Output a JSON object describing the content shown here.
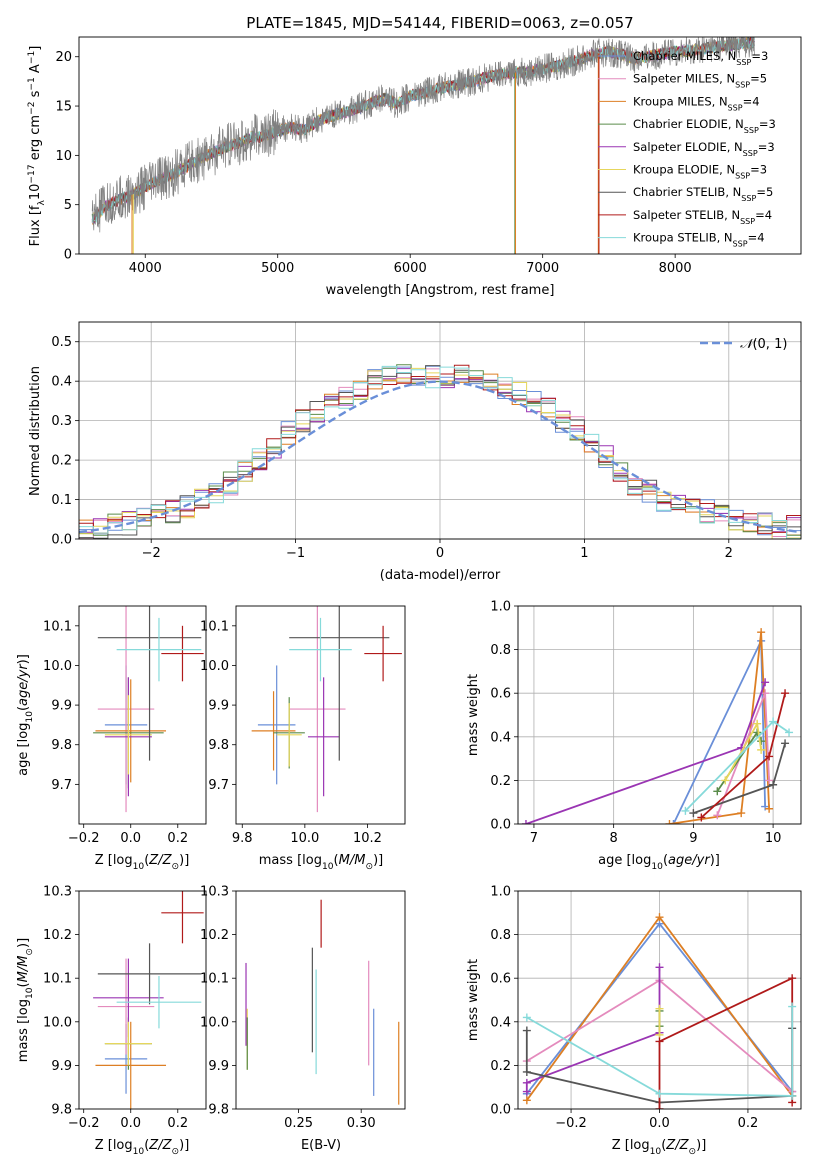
{
  "chart_data": [
    {
      "id": "spectrum",
      "type": "line",
      "title": "PLATE=1845, MJD=54144, FIBERID=0063, z=0.057",
      "xlabel": "wavelength [Angstrom, rest frame]",
      "ylabel": "Flux [f_λ 10^-17 erg cm^-2 s^-1 A^-1]",
      "xlim": [
        3500,
        8950
      ],
      "ylim": [
        0,
        22
      ],
      "xticks": [
        4000,
        5000,
        6000,
        7000,
        8000
      ],
      "yticks": [
        0,
        5,
        10,
        15,
        20
      ],
      "data_color": "#808080",
      "data_x": [
        3600,
        3700,
        3800,
        3900,
        4000,
        4100,
        4200,
        4300,
        4400,
        4500,
        4600,
        4700,
        4800,
        4900,
        5000,
        5100,
        5200,
        5300,
        5400,
        5500,
        5600,
        5700,
        5800,
        5900,
        6000,
        6100,
        6200,
        6300,
        6400,
        6500,
        6600,
        6700,
        6800,
        6900,
        7000,
        7100,
        7200,
        7300,
        7400,
        7500,
        7600,
        7700,
        7800,
        7900,
        8000,
        8100,
        8200,
        8300,
        8400,
        8500,
        8600,
        8700
      ],
      "data_y": [
        3.5,
        4.8,
        5.5,
        6.0,
        6.8,
        7.5,
        8.0,
        8.8,
        9.5,
        10.2,
        10.8,
        11.2,
        11.8,
        12.0,
        12.5,
        12.8,
        12.6,
        13.5,
        14.0,
        14.3,
        14.8,
        15.3,
        15.8,
        15.2,
        16.0,
        16.3,
        16.8,
        17.0,
        17.3,
        17.6,
        18.0,
        18.2,
        18.4,
        18.5,
        18.8,
        19.0,
        19.4,
        19.8,
        20.3,
        20.5,
        20.2,
        19.8,
        20.0,
        20.3,
        20.5,
        20.6,
        20.8,
        21.0,
        21.2,
        21.3,
        21.5,
        21.8
      ],
      "legend_placement": "right",
      "legend": [
        {
          "label": "Chabrier MILES, N_SSP=3",
          "color": "#6a8fd8"
        },
        {
          "label": "Salpeter MILES, N_SSP=5",
          "color": "#e48bbd"
        },
        {
          "label": "Kroupa MILES, N_SSP=4",
          "color": "#dd7f24"
        },
        {
          "label": "Chabrier ELODIE, N_SSP=3",
          "color": "#5a8c4a"
        },
        {
          "label": "Salpeter ELODIE, N_SSP=3",
          "color": "#9a35b3"
        },
        {
          "label": "Kroupa ELODIE, N_SSP=3",
          "color": "#e6d65c"
        },
        {
          "label": "Chabrier STELIB, N_SSP=5",
          "color": "#555555"
        },
        {
          "label": "Salpeter STELIB, N_SSP=4",
          "color": "#b01a1a"
        },
        {
          "label": "Kroupa STELIB, N_SSP=4",
          "color": "#86dada"
        }
      ]
    },
    {
      "id": "residuals",
      "type": "histogram",
      "xlabel": "(data-model)/error",
      "ylabel": "Normed distribution",
      "xlim": [
        -2.5,
        2.5
      ],
      "ylim": [
        0,
        0.55
      ],
      "xticks": [
        -2,
        -1,
        0,
        1,
        2
      ],
      "yticks": [
        0.0,
        0.1,
        0.2,
        0.3,
        0.4,
        0.5
      ],
      "grid": true,
      "bin_edges": [
        -2.5,
        -2.4,
        -2.3,
        -2.2,
        -2.1,
        -2.0,
        -1.9,
        -1.8,
        -1.7,
        -1.6,
        -1.5,
        -1.4,
        -1.3,
        -1.2,
        -1.1,
        -1.0,
        -0.9,
        -0.8,
        -0.7,
        -0.6,
        -0.5,
        -0.4,
        -0.3,
        -0.2,
        -0.1,
        0.0,
        0.1,
        0.2,
        0.3,
        0.4,
        0.5,
        0.6,
        0.7,
        0.8,
        0.9,
        1.0,
        1.1,
        1.2,
        1.3,
        1.4,
        1.5,
        1.6,
        1.7,
        1.8,
        1.9,
        2.0,
        2.1,
        2.2,
        2.3,
        2.4,
        2.5
      ],
      "mean_hist": [
        0.03,
        0.03,
        0.04,
        0.04,
        0.05,
        0.06,
        0.07,
        0.08,
        0.1,
        0.12,
        0.14,
        0.17,
        0.2,
        0.23,
        0.27,
        0.3,
        0.32,
        0.34,
        0.36,
        0.38,
        0.4,
        0.41,
        0.42,
        0.42,
        0.41,
        0.41,
        0.42,
        0.4,
        0.39,
        0.38,
        0.37,
        0.35,
        0.33,
        0.3,
        0.28,
        0.25,
        0.21,
        0.17,
        0.14,
        0.12,
        0.1,
        0.09,
        0.08,
        0.07,
        0.06,
        0.05,
        0.04,
        0.04,
        0.03,
        0.03
      ],
      "gaussian_label": "N(0,1)",
      "gaussian_color": "#6a8fd8",
      "legend_placement": "top-right"
    },
    {
      "id": "age-vs-Z",
      "type": "scatter",
      "xlabel": "Z [log10(Z/Z_sun)]",
      "ylabel": "age [log10(age/yr)]",
      "xlim": [
        -0.22,
        0.32
      ],
      "ylim": [
        9.6,
        10.15
      ],
      "xticks": [
        -0.2,
        0.0,
        0.2
      ],
      "yticks": [
        9.7,
        9.8,
        9.9,
        10.0,
        10.1
      ],
      "points": [
        {
          "color": "#6a8fd8",
          "x": -0.02,
          "y": 9.85,
          "xerr": 0.09,
          "yerr": 0.15
        },
        {
          "color": "#e48bbd",
          "x": -0.02,
          "y": 9.89,
          "xerr": 0.12,
          "yerr": 0.26
        },
        {
          "color": "#dd7f24",
          "x": 0.0,
          "y": 9.835,
          "xerr": 0.15,
          "yerr": 0.13
        },
        {
          "color": "#5a8c4a",
          "x": -0.01,
          "y": 9.83,
          "xerr": 0.15,
          "yerr": 0.14
        },
        {
          "color": "#9a35b3",
          "x": -0.01,
          "y": 9.82,
          "xerr": 0.1,
          "yerr": 0.15
        },
        {
          "color": "#e6d65c",
          "x": -0.01,
          "y": 9.825,
          "xerr": 0.1,
          "yerr": 0.1
        },
        {
          "color": "#555555",
          "x": 0.08,
          "y": 10.07,
          "xerr": 0.22,
          "yerr": 0.31
        },
        {
          "color": "#b01a1a",
          "x": 0.22,
          "y": 10.03,
          "xerr": 0.09,
          "yerr": 0.07
        },
        {
          "color": "#86dada",
          "x": 0.12,
          "y": 10.04,
          "xerr": 0.18,
          "yerr": 0.08
        }
      ]
    },
    {
      "id": "age-vs-mass",
      "type": "scatter",
      "xlabel": "mass [log10(M/M_sun)]",
      "ylabel": "",
      "xlim": [
        9.78,
        10.32
      ],
      "ylim": [
        9.6,
        10.15
      ],
      "xticks": [
        9.8,
        10.0,
        10.2
      ],
      "yticks": [
        9.7,
        9.8,
        9.9,
        10.0,
        10.1
      ],
      "points": [
        {
          "color": "#6a8fd8",
          "x": 9.91,
          "y": 9.85,
          "xerr": 0.06,
          "yerr": 0.15
        },
        {
          "color": "#e48bbd",
          "x": 10.04,
          "y": 9.89,
          "xerr": 0.09,
          "yerr": 0.26
        },
        {
          "color": "#dd7f24",
          "x": 9.9,
          "y": 9.835,
          "xerr": 0.07,
          "yerr": 0.1
        },
        {
          "color": "#5a8c4a",
          "x": 9.95,
          "y": 9.83,
          "xerr": 0.05,
          "yerr": 0.09
        },
        {
          "color": "#9a35b3",
          "x": 10.06,
          "y": 9.82,
          "xerr": 0.05,
          "yerr": 0.15
        },
        {
          "color": "#e6d65c",
          "x": 9.95,
          "y": 9.825,
          "xerr": 0.04,
          "yerr": 0.08
        },
        {
          "color": "#555555",
          "x": 10.11,
          "y": 10.07,
          "xerr": 0.16,
          "yerr": 0.31
        },
        {
          "color": "#b01a1a",
          "x": 10.25,
          "y": 10.03,
          "xerr": 0.06,
          "yerr": 0.07
        },
        {
          "color": "#86dada",
          "x": 10.05,
          "y": 10.04,
          "xerr": 0.1,
          "yerr": 0.08
        }
      ]
    },
    {
      "id": "weight-vs-age",
      "type": "line",
      "xlabel": "age [log10(age/yr)]",
      "ylabel": "mass weight",
      "xlim": [
        6.8,
        10.35
      ],
      "ylim": [
        0,
        1.0
      ],
      "xticks": [
        7,
        8,
        9,
        10
      ],
      "yticks": [
        0.0,
        0.2,
        0.4,
        0.6,
        0.8,
        1.0
      ],
      "grid": true,
      "series": [
        {
          "color": "#6a8fd8",
          "x": [
            8.75,
            9.85,
            9.9
          ],
          "y": [
            0.0,
            0.84,
            0.08
          ]
        },
        {
          "color": "#dd7f24",
          "x": [
            8.7,
            9.6,
            9.85,
            9.95
          ],
          "y": [
            0.0,
            0.05,
            0.88,
            0.07
          ]
        },
        {
          "color": "#e48bbd",
          "x": [
            9.3,
            9.9,
            9.95
          ],
          "y": [
            0.04,
            0.6,
            0.2
          ]
        },
        {
          "color": "#9a35b3",
          "x": [
            6.9,
            9.6,
            9.9
          ],
          "y": [
            0.0,
            0.35,
            0.65
          ]
        },
        {
          "color": "#5a8c4a",
          "x": [
            9.3,
            9.8,
            9.85
          ],
          "y": [
            0.15,
            0.42,
            0.38
          ]
        },
        {
          "color": "#e6d65c",
          "x": [
            9.4,
            9.8,
            9.85
          ],
          "y": [
            0.2,
            0.46,
            0.34
          ]
        },
        {
          "color": "#555555",
          "x": [
            9.0,
            10.0,
            10.15
          ],
          "y": [
            0.05,
            0.18,
            0.37
          ]
        },
        {
          "color": "#b01a1a",
          "x": [
            9.1,
            9.95,
            10.15
          ],
          "y": [
            0.03,
            0.31,
            0.6
          ]
        },
        {
          "color": "#86dada",
          "x": [
            8.9,
            10.0,
            10.2
          ],
          "y": [
            0.06,
            0.47,
            0.42
          ]
        }
      ]
    },
    {
      "id": "mass-vs-Z",
      "type": "scatter",
      "xlabel": "Z [log10(Z/Z_sun)]",
      "ylabel": "mass [log10(M/M_sun)]",
      "xlim": [
        -0.22,
        0.32
      ],
      "ylim": [
        9.8,
        10.3
      ],
      "xticks": [
        -0.2,
        0.0,
        0.2
      ],
      "yticks": [
        9.8,
        9.9,
        10.0,
        10.1,
        10.2,
        10.3
      ],
      "points": [
        {
          "color": "#6a8fd8",
          "x": -0.02,
          "y": 9.915,
          "xerr": 0.09,
          "yerr": 0.08
        },
        {
          "color": "#e48bbd",
          "x": -0.02,
          "y": 10.035,
          "xerr": 0.12,
          "yerr": 0.11
        },
        {
          "color": "#dd7f24",
          "x": 0.0,
          "y": 9.9,
          "xerr": 0.15,
          "yerr": 0.1
        },
        {
          "color": "#5a8c4a",
          "x": -0.01,
          "y": 9.95,
          "xerr": 0.1,
          "yerr": 0.06
        },
        {
          "color": "#9a35b3",
          "x": -0.01,
          "y": 10.055,
          "xerr": 0.15,
          "yerr": 0.09
        },
        {
          "color": "#e6d65c",
          "x": -0.01,
          "y": 9.95,
          "xerr": 0.1,
          "yerr": 0.05
        },
        {
          "color": "#555555",
          "x": 0.08,
          "y": 10.11,
          "xerr": 0.22,
          "yerr": 0.07
        },
        {
          "color": "#b01a1a",
          "x": 0.22,
          "y": 10.25,
          "xerr": 0.09,
          "yerr": 0.07
        },
        {
          "color": "#86dada",
          "x": 0.12,
          "y": 10.045,
          "xerr": 0.18,
          "yerr": 0.06
        }
      ]
    },
    {
      "id": "mass-vs-ebv",
      "type": "errorbar",
      "xlabel": "E(B-V)",
      "ylabel": "",
      "xlim": [
        0.2,
        0.335
      ],
      "ylim": [
        9.8,
        10.3
      ],
      "xticks": [
        0.25,
        0.3
      ],
      "yticks": [
        9.8,
        9.9,
        10.0,
        10.1,
        10.2,
        10.3
      ],
      "points": [
        {
          "color": "#9a35b3",
          "x": 0.208,
          "y": 10.04,
          "yerr": 0.095
        },
        {
          "color": "#e6d65c",
          "x": 0.209,
          "y": 9.96,
          "xerr": 0,
          "yerr": 0.07
        },
        {
          "color": "#5a8c4a",
          "x": 0.209,
          "y": 9.95,
          "yerr": 0.06
        },
        {
          "color": "#555555",
          "x": 0.261,
          "y": 10.05,
          "yerr": 0.12
        },
        {
          "color": "#86dada",
          "x": 0.264,
          "y": 10.0,
          "yerr": 0.12
        },
        {
          "color": "#b01a1a",
          "x": 0.268,
          "y": 10.225,
          "yerr": 0.055
        },
        {
          "color": "#e48bbd",
          "x": 0.306,
          "y": 10.02,
          "yerr": 0.12
        },
        {
          "color": "#6a8fd8",
          "x": 0.31,
          "y": 9.93,
          "yerr": 0.1
        },
        {
          "color": "#dd7f24",
          "x": 0.33,
          "y": 9.905,
          "yerr": 0.095
        }
      ]
    },
    {
      "id": "weight-vs-Z",
      "type": "line",
      "xlabel": "Z [log10(Z/Z_sun)]",
      "ylabel": "mass weight",
      "xlim": [
        -0.32,
        0.32
      ],
      "ylim": [
        0,
        1.0
      ],
      "xticks": [
        -0.2,
        0.0,
        0.2
      ],
      "yticks": [
        0.0,
        0.2,
        0.4,
        0.6,
        0.8,
        1.0
      ],
      "grid": true,
      "series": [
        {
          "color": "#6a8fd8",
          "x": [
            -0.3,
            0.0,
            0.3
          ],
          "y": [
            0.07,
            0.85,
            0.08
          ]
        },
        {
          "color": "#dd7f24",
          "x": [
            -0.3,
            0.0,
            0.3
          ],
          "y": [
            0.04,
            0.88,
            0.06
          ]
        },
        {
          "color": "#e48bbd",
          "x": [
            -0.3,
            0.0,
            0.3
          ],
          "y": [
            0.22,
            0.59,
            0.08
          ]
        },
        {
          "color": "#9a35b3",
          "x": [
            -0.3,
            -0.3,
            0.0,
            0.0
          ],
          "y": [
            0.08,
            0.12,
            0.35,
            0.65
          ]
        },
        {
          "color": "#5a8c4a",
          "x": [
            0.0,
            0.0
          ],
          "y": [
            0.38,
            0.45
          ]
        },
        {
          "color": "#e6d65c",
          "x": [
            0.0,
            0.0
          ],
          "y": [
            0.34,
            0.46
          ]
        },
        {
          "color": "#555555",
          "x": [
            -0.3,
            -0.3,
            0.0,
            0.3,
            0.3
          ],
          "y": [
            0.36,
            0.17,
            0.03,
            0.06,
            0.37
          ]
        },
        {
          "color": "#b01a1a",
          "x": [
            0.0,
            0.0,
            0.3,
            0.3
          ],
          "y": [
            0.0,
            0.31,
            0.6,
            0.03
          ]
        },
        {
          "color": "#86dada",
          "x": [
            -0.3,
            0.0,
            0.3,
            0.3
          ],
          "y": [
            0.42,
            0.07,
            0.06,
            0.47
          ]
        }
      ]
    }
  ]
}
